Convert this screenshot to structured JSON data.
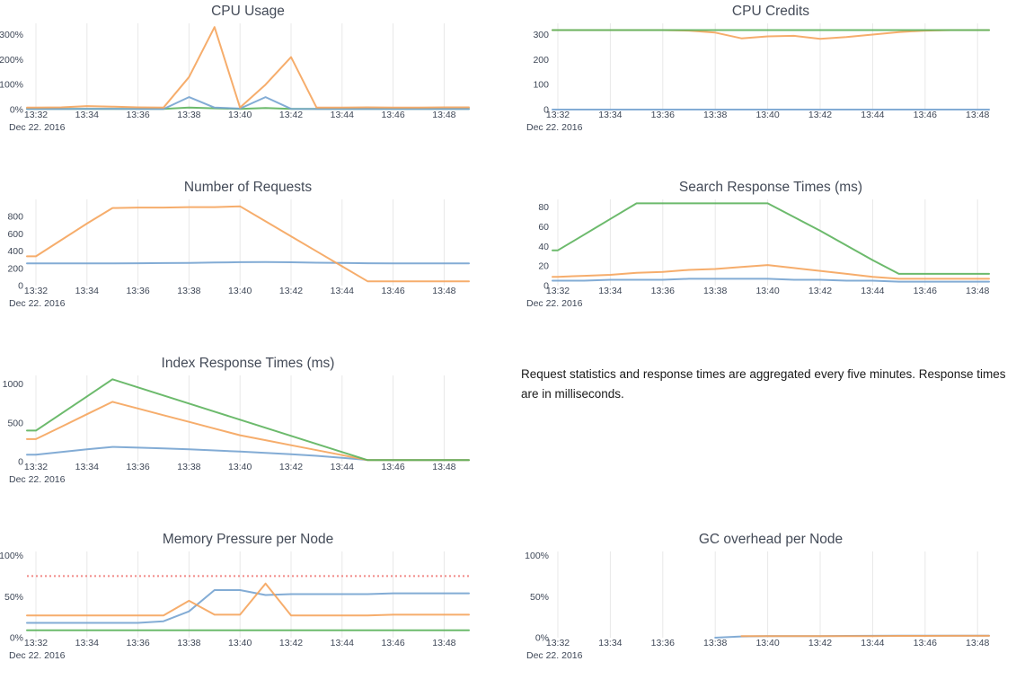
{
  "palette": {
    "blue": "#76a3d0",
    "orange": "#f5a45c",
    "green": "#5cb35c",
    "red": "#ee7673",
    "grid": "#e8e8e8",
    "tick_text": "#3e4757",
    "title_text": "#444b58"
  },
  "note": {
    "text": "Request statistics and response times are aggregated every five minutes. Response times are in milliseconds."
  },
  "chart_data": {
    "x_times": [
      "13:32",
      "13:33",
      "13:34",
      "13:35",
      "13:36",
      "13:37",
      "13:38",
      "13:39",
      "13:40",
      "13:41",
      "13:42",
      "13:43",
      "13:44",
      "13:45",
      "13:46",
      "13:47",
      "13:48"
    ],
    "x_tick_labels": [
      "13:32",
      "13:34",
      "13:36",
      "13:38",
      "13:40",
      "13:42",
      "13:44",
      "13:46",
      "13:48"
    ],
    "x_date_label": "Dec 22. 2016",
    "grid": "vertical-only",
    "legend": "none",
    "charts": [
      {
        "id": "cpu-usage",
        "type": "line",
        "title": "CPU Usage",
        "ylim": [
          0,
          345
        ],
        "yticks": [
          {
            "v": 0,
            "label": "0%"
          },
          {
            "v": 100,
            "label": "100%"
          },
          {
            "v": 200,
            "label": "200%"
          },
          {
            "v": 300,
            "label": "300%"
          }
        ],
        "series": [
          {
            "name": "green",
            "color": "green",
            "values": [
              3,
              3,
              3,
              3,
              3,
              3,
              8,
              5,
              3,
              6,
              3,
              3,
              3,
              3,
              3,
              3,
              3
            ]
          },
          {
            "name": "blue",
            "color": "blue",
            "values": [
              2,
              2,
              3,
              3,
              2,
              2,
              50,
              8,
              4,
              50,
              3,
              2,
              2,
              2,
              2,
              2,
              2
            ]
          },
          {
            "name": "orange",
            "color": "orange",
            "values": [
              8,
              9,
              14,
              12,
              9,
              8,
              130,
              330,
              8,
              100,
              210,
              8,
              8,
              9,
              8,
              8,
              9
            ]
          }
        ]
      },
      {
        "id": "cpu-credits",
        "type": "line",
        "title": "CPU Credits",
        "ylim": [
          0,
          345
        ],
        "yticks": [
          {
            "v": 0,
            "label": "0"
          },
          {
            "v": 100,
            "label": "100"
          },
          {
            "v": 200,
            "label": "200"
          },
          {
            "v": 300,
            "label": "300"
          }
        ],
        "series": [
          {
            "name": "blue",
            "color": "blue",
            "values": [
              0,
              0,
              0,
              0,
              0,
              0,
              0,
              0,
              0,
              0,
              0,
              0,
              0,
              0,
              0,
              0,
              0
            ]
          },
          {
            "name": "orange",
            "color": "orange",
            "values": [
              318,
              318,
              318,
              318,
              318,
              316,
              308,
              285,
              293,
              295,
              283,
              290,
              300,
              310,
              316,
              318,
              318
            ]
          },
          {
            "name": "green",
            "color": "green",
            "values": [
              318,
              318,
              318,
              318,
              318,
              318,
              318,
              318,
              318,
              318,
              318,
              318,
              318,
              318,
              318,
              318,
              318
            ]
          }
        ]
      },
      {
        "id": "number-of-requests",
        "type": "line",
        "title": "Number of Requests",
        "ylim": [
          0,
          1000
        ],
        "yticks": [
          {
            "v": 0,
            "label": "0"
          },
          {
            "v": 200,
            "label": "200"
          },
          {
            "v": 400,
            "label": "400"
          },
          {
            "v": 600,
            "label": "600"
          },
          {
            "v": 800,
            "label": "800"
          }
        ],
        "series": [
          {
            "name": "blue",
            "color": "blue",
            "values": [
              258,
              258,
              258,
              258,
              259,
              261,
              263,
              268,
              272,
              273,
              271,
              266,
              262,
              259,
              257,
              257,
              257
            ]
          },
          {
            "name": "orange",
            "color": "orange",
            "values": [
              340,
              530,
              720,
              900,
              905,
              905,
              910,
              910,
              920,
              746,
              572,
              398,
              224,
              50,
              50,
              50,
              50
            ]
          }
        ]
      },
      {
        "id": "search-response-times",
        "type": "line",
        "title": "Search Response Times (ms)",
        "ylim": [
          0,
          88
        ],
        "yticks": [
          {
            "v": 0,
            "label": "0"
          },
          {
            "v": 20,
            "label": "20"
          },
          {
            "v": 40,
            "label": "40"
          },
          {
            "v": 60,
            "label": "60"
          },
          {
            "v": 80,
            "label": "80"
          }
        ],
        "series": [
          {
            "name": "blue",
            "color": "blue",
            "values": [
              5,
              5,
              6,
              6,
              6,
              7,
              7,
              7,
              7,
              6,
              6,
              5,
              5,
              4,
              4,
              4,
              4
            ]
          },
          {
            "name": "orange",
            "color": "orange",
            "values": [
              9,
              10,
              11,
              13,
              14,
              16,
              17,
              19,
              21,
              18,
              15,
              12,
              9,
              7,
              7,
              7,
              7
            ]
          },
          {
            "name": "green",
            "color": "green",
            "values": [
              36,
              52,
              68,
              84,
              84,
              84,
              84,
              84,
              84,
              70,
              56,
              41,
              26,
              12,
              12,
              12,
              12
            ]
          }
        ]
      },
      {
        "id": "index-response-times",
        "type": "line",
        "title": "Index Response Times (ms)",
        "ylim": [
          0,
          1110
        ],
        "yticks": [
          {
            "v": 0,
            "label": "0"
          },
          {
            "v": 500,
            "label": "500"
          },
          {
            "v": 1000,
            "label": "1000"
          }
        ],
        "series": [
          {
            "name": "blue",
            "color": "blue",
            "values": [
              90,
              125,
              160,
              190,
              180,
              170,
              158,
              145,
              130,
              112,
              95,
              75,
              50,
              22,
              20,
              20,
              20
            ]
          },
          {
            "name": "orange",
            "color": "orange",
            "values": [
              290,
              450,
              610,
              770,
              684,
              598,
              512,
              426,
              340,
              276,
              212,
              148,
              84,
              20,
              20,
              20,
              20
            ]
          },
          {
            "name": "green",
            "color": "green",
            "values": [
              400,
              620,
              840,
              1060,
              956,
              852,
              748,
              644,
              540,
              436,
              332,
              228,
              124,
              20,
              20,
              20,
              20
            ]
          }
        ]
      },
      {
        "id": "memory-pressure-per-node",
        "type": "line",
        "title": "Memory Pressure per Node",
        "ylim": [
          0,
          105
        ],
        "threshold": {
          "value": 75,
          "color": "red",
          "style": "dotted"
        },
        "yticks": [
          {
            "v": 0,
            "label": "0%"
          },
          {
            "v": 50,
            "label": "50%"
          },
          {
            "v": 100,
            "label": "100%"
          }
        ],
        "series": [
          {
            "name": "green",
            "color": "green",
            "values": [
              9,
              9,
              9,
              9,
              9,
              9,
              9,
              9,
              9,
              9,
              9,
              9,
              9,
              9,
              9,
              9,
              9
            ]
          },
          {
            "name": "blue",
            "color": "blue",
            "values": [
              18,
              18,
              18,
              18,
              18,
              20,
              32,
              58,
              58,
              52,
              53,
              53,
              53,
              53,
              54,
              54,
              54
            ]
          },
          {
            "name": "orange",
            "color": "orange",
            "values": [
              27,
              27,
              27,
              27,
              27,
              27,
              45,
              28,
              28,
              66,
              27,
              27,
              27,
              27,
              28,
              28,
              28
            ]
          }
        ]
      },
      {
        "id": "gc-overhead-per-node",
        "type": "line",
        "title": "GC overhead per Node",
        "ylim": [
          0,
          105
        ],
        "yticks": [
          {
            "v": 0,
            "label": "0%"
          },
          {
            "v": 50,
            "label": "50%"
          },
          {
            "v": 100,
            "label": "100%"
          }
        ],
        "series": [
          {
            "name": "blue",
            "color": "blue",
            "values": [
              null,
              null,
              null,
              null,
              null,
              null,
              0,
              1.5,
              2,
              2,
              2,
              2.2,
              2.3,
              2.4,
              2.5,
              2.5,
              2.5
            ]
          },
          {
            "name": "orange",
            "color": "orange",
            "values": [
              null,
              null,
              null,
              null,
              null,
              null,
              null,
              2,
              2,
              2,
              2,
              2,
              2,
              2.2,
              2.2,
              2.3,
              2.3
            ]
          }
        ]
      }
    ]
  }
}
